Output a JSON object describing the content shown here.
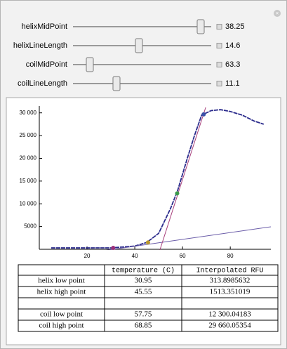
{
  "controls": [
    {
      "label": "helixMidPoint",
      "value": "38.25"
    },
    {
      "label": "helixLineLength",
      "value": "14.6"
    },
    {
      "label": "coilMidPoint",
      "value": "63.3"
    },
    {
      "label": "coilLineLength",
      "value": "11.1"
    }
  ],
  "chart_data": {
    "type": "line",
    "xlim": [
      0,
      97
    ],
    "ylim": [
      0,
      31500
    ],
    "xticks": [
      20,
      40,
      60,
      80
    ],
    "yticks": [
      {
        "value": 5000,
        "label": "5000"
      },
      {
        "value": 10000,
        "label": "10 000"
      },
      {
        "value": 15000,
        "label": "15 000"
      },
      {
        "value": 20000,
        "label": "20 000"
      },
      {
        "value": 25000,
        "label": "25 000"
      },
      {
        "value": 30000,
        "label": "30 000"
      }
    ],
    "series": [
      {
        "color": "#2b2b8c",
        "x": [
          5,
          20,
          30,
          40,
          45,
          50,
          55,
          58,
          62,
          65,
          68,
          72,
          76,
          80,
          85,
          90,
          94
        ],
        "values": [
          300,
          300,
          310,
          700,
          1500,
          3500,
          9000,
          13000,
          20000,
          25000,
          29500,
          30500,
          30700,
          30300,
          29500,
          28200,
          27500
        ]
      },
      {
        "color": "#6a5ca8",
        "x": [
          19,
          97
        ],
        "values": [
          -900,
          4950
        ]
      },
      {
        "color": "#a8407c",
        "x": [
          50,
          69.7
        ],
        "values": [
          -1000,
          31200
        ]
      }
    ],
    "points": {
      "x": [
        30.95,
        45.55,
        57.75,
        68.85
      ],
      "values": [
        314,
        1513,
        12300,
        29660
      ],
      "colors": [
        "#9b2f7a",
        "#b8962e",
        "#3a9a4a",
        "#3a4fa8"
      ]
    }
  },
  "table": {
    "header": [
      "temperature (C)",
      "Interpolated RFU"
    ],
    "rows": [
      [
        "helix low point",
        "30.95",
        "313.8985632"
      ],
      [
        "helix high point",
        "45.55",
        "1513.351019"
      ],
      [
        "coil low point",
        "57.75",
        "12 300.04183"
      ],
      [
        "coil high point",
        "68.85",
        "29 660.05354"
      ]
    ]
  }
}
